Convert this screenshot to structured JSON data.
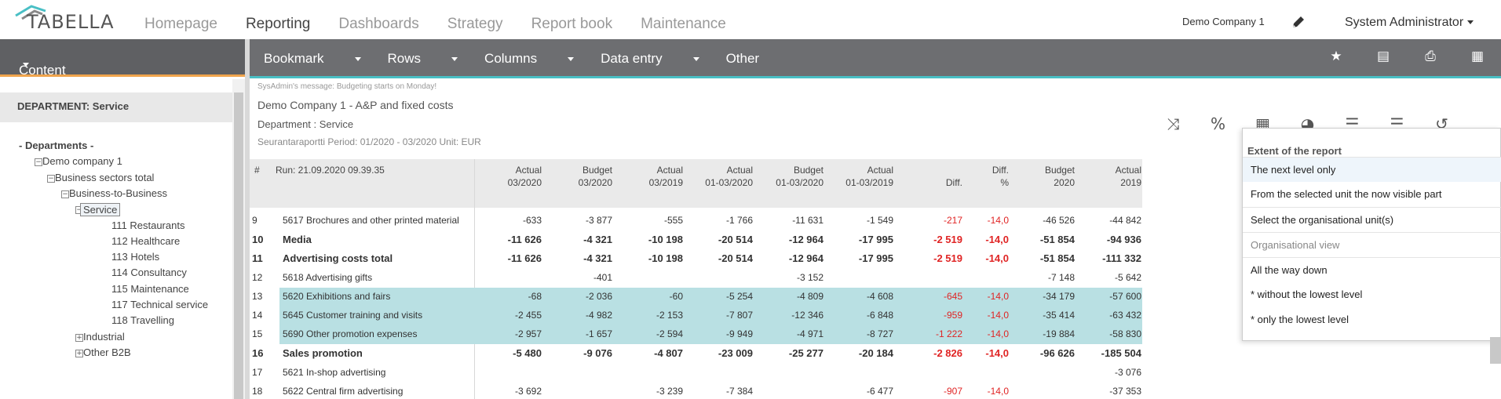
{
  "app": {
    "logo_text": "TABELLA",
    "nav": [
      "Homepage",
      "Reporting",
      "Dashboards",
      "Strategy",
      "Report book",
      "Maintenance"
    ],
    "active_nav": "Reporting",
    "company": "Demo Company 1",
    "user": "System Administrator"
  },
  "toolbar": {
    "content_label": "Content",
    "menu": [
      "Bookmark",
      "Rows",
      "Columns",
      "Data entry",
      "Other"
    ]
  },
  "sidebar": {
    "header": "DEPARTMENT: Service",
    "tree": [
      {
        "label": "- Departments -",
        "level": 0,
        "box": ""
      },
      {
        "label": "Demo company 1",
        "level": 1,
        "box": "−"
      },
      {
        "label": "Business sectors total",
        "level": 2,
        "box": "−"
      },
      {
        "label": "Business-to-Business",
        "level": 3,
        "box": "−"
      },
      {
        "label": "Service",
        "level": 4,
        "box": "−",
        "selected": true
      },
      {
        "label": "111 Restaurants",
        "level": 5,
        "box": ""
      },
      {
        "label": "112 Healthcare",
        "level": 5,
        "box": ""
      },
      {
        "label": "113 Hotels",
        "level": 5,
        "box": ""
      },
      {
        "label": "114 Consultancy",
        "level": 5,
        "box": ""
      },
      {
        "label": "115 Maintenance",
        "level": 5,
        "box": ""
      },
      {
        "label": "117 Technical service",
        "level": 5,
        "box": ""
      },
      {
        "label": "118 Travelling",
        "level": 5,
        "box": ""
      },
      {
        "label": "Industrial",
        "level": 4,
        "box": "+"
      },
      {
        "label": "Other B2B",
        "level": 4,
        "box": "+"
      }
    ]
  },
  "report": {
    "message": "SysAdmin's message: Budgeting starts on Monday!",
    "title": "Demo Company 1 - A&P and fixed costs",
    "department": "Department : Service",
    "period": "Seurantaraportti Period: 01/2020 - 03/2020 Unit: EUR",
    "header_hash": "#",
    "run": "Run: 21.09.2020 09.39.35",
    "columns": [
      [
        "Actual",
        "03/2020"
      ],
      [
        "Budget",
        "03/2020"
      ],
      [
        "Actual",
        "03/2019"
      ],
      [
        "Actual",
        "01-03/2020"
      ],
      [
        "Budget",
        "01-03/2020"
      ],
      [
        "Actual",
        "01-03/2019"
      ],
      [
        "",
        "Diff."
      ],
      [
        "Diff.",
        "%"
      ],
      [
        "Budget",
        "2020"
      ],
      [
        "Actual",
        "2019"
      ]
    ],
    "rows": [
      {
        "n": "9",
        "label": "5617 Brochures and other printed material",
        "bold": false,
        "hl": false,
        "v": [
          "-633",
          "-3 877",
          "-555",
          "-1 766",
          "-11 631",
          "-1 549",
          "-217",
          "-14,0",
          "-46 526",
          "-44 842"
        ]
      },
      {
        "n": "10",
        "label": "Media",
        "bold": true,
        "hl": false,
        "v": [
          "-11 626",
          "-4 321",
          "-10 198",
          "-20 514",
          "-12 964",
          "-17 995",
          "-2 519",
          "-14,0",
          "-51 854",
          "-94 936"
        ]
      },
      {
        "n": "11",
        "label": "Advertising costs total",
        "bold": true,
        "hl": false,
        "v": [
          "-11 626",
          "-4 321",
          "-10 198",
          "-20 514",
          "-12 964",
          "-17 995",
          "-2 519",
          "-14,0",
          "-51 854",
          "-111 332"
        ]
      },
      {
        "n": "12",
        "label": "5618 Advertising gifts",
        "bold": false,
        "hl": false,
        "v": [
          "",
          "-401",
          "",
          "",
          "-3 152",
          "",
          "",
          "",
          "-7 148",
          "-5 642"
        ]
      },
      {
        "n": "13",
        "label": "5620 Exhibitions and fairs",
        "bold": false,
        "hl": true,
        "v": [
          "-68",
          "-2 036",
          "-60",
          "-5 254",
          "-4 809",
          "-4 608",
          "-645",
          "-14,0",
          "-34 179",
          "-57 600"
        ]
      },
      {
        "n": "14",
        "label": "5645 Customer training and visits",
        "bold": false,
        "hl": true,
        "v": [
          "-2 455",
          "-4 982",
          "-2 153",
          "-7 807",
          "-12 346",
          "-6 848",
          "-959",
          "-14,0",
          "-35 414",
          "-63 432"
        ]
      },
      {
        "n": "15",
        "label": "5690 Other promotion expenses",
        "bold": false,
        "hl": true,
        "v": [
          "-2 957",
          "-1 657",
          "-2 594",
          "-9 949",
          "-4 971",
          "-8 727",
          "-1 222",
          "-14,0",
          "-19 884",
          "-58 830"
        ]
      },
      {
        "n": "16",
        "label": "Sales promotion",
        "bold": true,
        "hl": false,
        "v": [
          "-5 480",
          "-9 076",
          "-4 807",
          "-23 009",
          "-25 277",
          "-20 184",
          "-2 826",
          "-14,0",
          "-96 626",
          "-185 504"
        ]
      },
      {
        "n": "17",
        "label": "5621 In-shop advertising",
        "bold": false,
        "hl": false,
        "v": [
          "",
          "",
          "",
          "",
          "",
          "",
          "",
          "",
          "",
          "-3 076"
        ]
      },
      {
        "n": "18",
        "label": "5622 Central firm advertising",
        "bold": false,
        "hl": false,
        "v": [
          "-3 692",
          "",
          "-3 239",
          "-7 384",
          "",
          "-6 477",
          "-907",
          "-14,0",
          "",
          "-37 353"
        ]
      }
    ]
  },
  "dropdown": {
    "title": "Extent of the report",
    "items": [
      {
        "label": "The next level only",
        "selected": true,
        "muted": false
      },
      {
        "label": "From the selected unit the now visible part",
        "selected": false,
        "muted": false
      },
      {
        "label": "Select the organisational unit(s)",
        "selected": false,
        "muted": false
      },
      {
        "label": "Organisational view",
        "selected": false,
        "muted": true
      },
      {
        "label": "All the way down",
        "selected": false,
        "muted": false
      },
      {
        "label": "* without the lowest level",
        "selected": false,
        "muted": false
      },
      {
        "label": "* only the lowest level",
        "selected": false,
        "muted": false
      }
    ]
  },
  "icons": {
    "toolbar": [
      "star-icon",
      "pdf-icon",
      "print-icon",
      "excel-icon"
    ],
    "report_tools": [
      "shuffle-icon",
      "percent-icon",
      "grid-icon",
      "pie-chart-icon",
      "list-minus-icon",
      "list-plus-icon",
      "history-icon"
    ]
  },
  "colors": {
    "accent_orange": "#f0a44c",
    "accent_teal": "#49bfc5",
    "highlight_row": "#b9e0e3",
    "negative": "#e02424",
    "toolbar_gray": "#6d6e71"
  }
}
